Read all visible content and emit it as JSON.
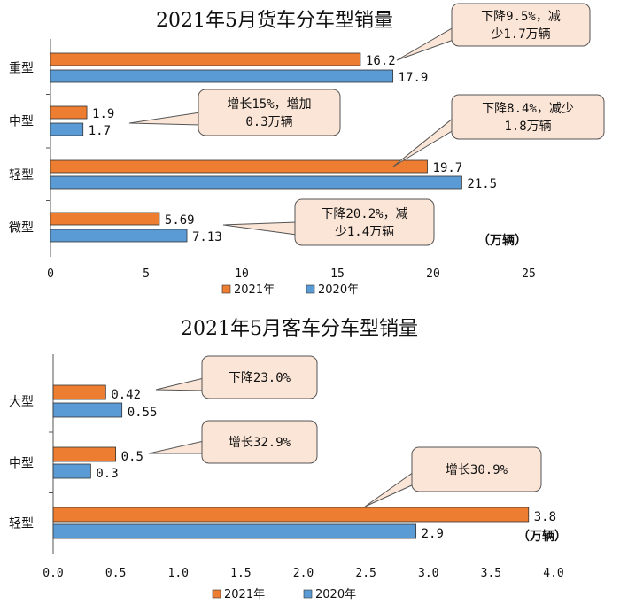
{
  "chart_data": [
    {
      "type": "bar",
      "orientation": "horizontal",
      "title": "2021年5月货车分车型销量",
      "categories": [
        "重型",
        "中型",
        "轻型",
        "微型"
      ],
      "series": [
        {
          "name": "2021年",
          "color": "#ED7D31",
          "values": [
            16.2,
            1.9,
            19.7,
            5.69
          ],
          "labels": [
            "16.2",
            "1.9",
            "19.7",
            "5.69"
          ]
        },
        {
          "name": "2020年",
          "color": "#5B9BD5",
          "values": [
            17.9,
            1.7,
            21.5,
            7.13
          ],
          "labels": [
            "17.9",
            "1.7",
            "21.5",
            "7.13"
          ]
        }
      ],
      "xlim": [
        0,
        25
      ],
      "ticks": [
        0,
        5,
        10,
        15,
        20,
        25
      ],
      "tick_labels": [
        "0",
        "5",
        "10",
        "15",
        "20",
        "25"
      ],
      "unit": "（万辆）",
      "annotations": [
        {
          "lines": [
            "下降9.5%，减",
            "少1.7万辆"
          ]
        },
        {
          "lines": [
            "增长15%，增加",
            "0.3万辆"
          ]
        },
        {
          "lines": [
            "下降8.4%，减少",
            "1.8万辆"
          ]
        },
        {
          "lines": [
            "下降20.2%，减",
            "少1.4万辆"
          ]
        }
      ]
    },
    {
      "type": "bar",
      "orientation": "horizontal",
      "title": "2021年5月客车分车型销量",
      "categories": [
        "大型",
        "中型",
        "轻型"
      ],
      "series": [
        {
          "name": "2021年",
          "color": "#ED7D31",
          "values": [
            0.42,
            0.5,
            3.8
          ],
          "labels": [
            "0.42",
            "0.5",
            "3.8"
          ]
        },
        {
          "name": "2020年",
          "color": "#5B9BD5",
          "values": [
            0.55,
            0.3,
            2.9
          ],
          "labels": [
            "0.55",
            "0.3",
            "2.9"
          ]
        }
      ],
      "xlim": [
        0,
        4
      ],
      "ticks": [
        0,
        0.5,
        1,
        1.5,
        2,
        2.5,
        3,
        3.5,
        4
      ],
      "tick_labels": [
        "0.0",
        "0.5",
        "1.0",
        "1.5",
        "2.0",
        "2.5",
        "3.0",
        "3.5",
        "4.0"
      ],
      "unit": "（万辆）",
      "annotations": [
        {
          "lines": [
            "下降23.0%"
          ]
        },
        {
          "lines": [
            "增长32.9%"
          ]
        },
        {
          "lines": [
            "增长30.9%"
          ]
        }
      ]
    }
  ],
  "colors": {
    "bubble_fill": "#FBE5D6",
    "bubble_stroke": "#555555",
    "axis": "#555555"
  }
}
